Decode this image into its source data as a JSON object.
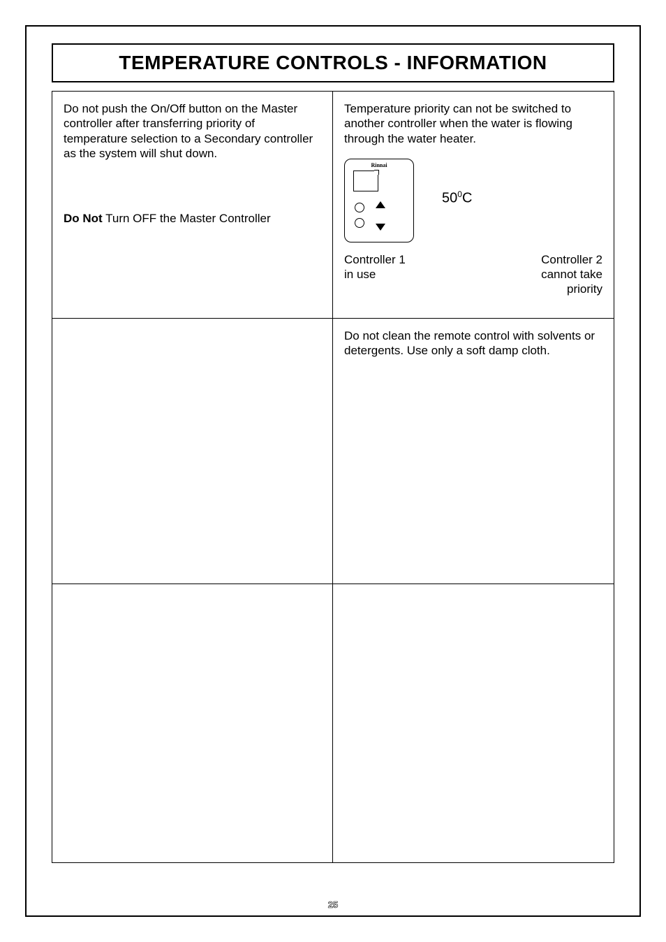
{
  "page_title": "TEMPERATURE CONTROLS - INFORMATION",
  "page_number": "25",
  "cell_1_left": {
    "p1": "Do not push the On/Off button on the Master controller after transferring priority of temperature selection to a Secondary controller as the system will shut down.",
    "donot_bold": "Do Not",
    "donot_rest": " Turn OFF the Master Controller"
  },
  "cell_1_right": {
    "p1": "Temperature priority can not be switched to another controller when the water is flowing through the water heater.",
    "brand": "Rinnai",
    "temp_value": "50",
    "temp_unit_sup": "0",
    "temp_unit": "C",
    "cap_left_l1": "Controller 1",
    "cap_left_l2": "in use",
    "cap_right_l1": "Controller 2",
    "cap_right_l2": "cannot take",
    "cap_right_l3": "priority"
  },
  "cell_2_right": {
    "p1": "Do not clean the remote control with solvents or detergents. Use only a soft damp cloth."
  },
  "colors": {
    "border": "#000000",
    "bg": "#ffffff",
    "text": "#000000"
  }
}
